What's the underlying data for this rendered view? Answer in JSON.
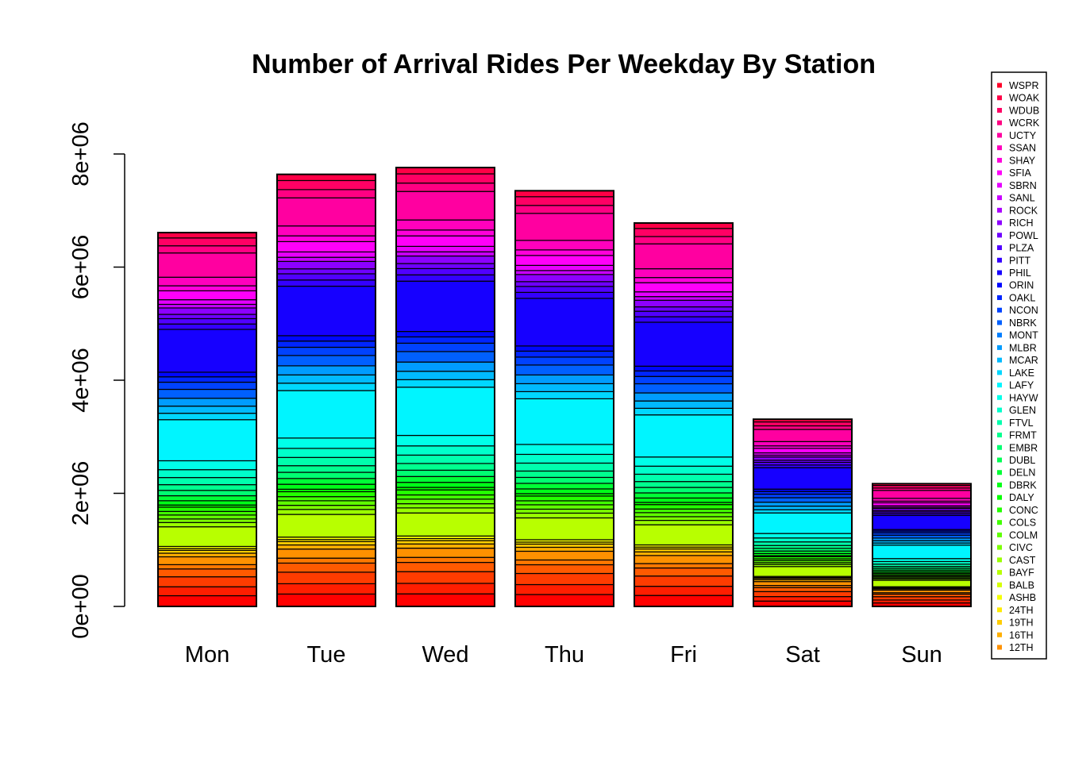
{
  "chart_data": {
    "type": "bar",
    "stacked": true,
    "title": "Number of Arrival Rides Per Weekday By Station",
    "xlabel": "",
    "ylabel": "",
    "ylim": [
      0,
      8000000
    ],
    "yticks": [
      {
        "value": 0,
        "label": "0e+00"
      },
      {
        "value": 2000000,
        "label": "2e+06"
      },
      {
        "value": 4000000,
        "label": "4e+06"
      },
      {
        "value": 6000000,
        "label": "6e+06"
      },
      {
        "value": 8000000,
        "label": "8e+06"
      }
    ],
    "categories": [
      "Mon",
      "Tue",
      "Wed",
      "Thu",
      "Fri",
      "Sat",
      "Sun"
    ],
    "totals": [
      6610000,
      7640000,
      7760000,
      7350000,
      6780000,
      3310000,
      2170000
    ],
    "station_shares": [
      0.03,
      0.025,
      0.028,
      0.022,
      0.012,
      0.022,
      0.01,
      0.008,
      0.005,
      0.006,
      0.055,
      0.012,
      0.01,
      0.011,
      0.01,
      0.012,
      0.006,
      0.012,
      0.014,
      0.015,
      0.016,
      0.02,
      0.022,
      0.025,
      0.115,
      0.018,
      0.02,
      0.022,
      0.025,
      0.02,
      0.015,
      0.013,
      0.12,
      0.015,
      0.015,
      0.012,
      0.018,
      0.01,
      0.013,
      0.025,
      0.014,
      0.024,
      0.068,
      0.02,
      0.022,
      0.015
    ],
    "legend_position": "right",
    "legend": [
      {
        "name": "WSPR",
        "color": "#ff0029"
      },
      {
        "name": "WOAK",
        "color": "#ff0046"
      },
      {
        "name": "WDUB",
        "color": "#ff0064"
      },
      {
        "name": "WCRK",
        "color": "#ff0082"
      },
      {
        "name": "UCTY",
        "color": "#ff00a0"
      },
      {
        "name": "SSAN",
        "color": "#ff00bd"
      },
      {
        "name": "SHAY",
        "color": "#ff00db"
      },
      {
        "name": "SFIA",
        "color": "#ff00f9"
      },
      {
        "name": "SBRN",
        "color": "#e600ff"
      },
      {
        "name": "SANL",
        "color": "#c900ff"
      },
      {
        "name": "ROCK",
        "color": "#ab00ff"
      },
      {
        "name": "RICH",
        "color": "#8d00ff"
      },
      {
        "name": "POWL",
        "color": "#6f00ff"
      },
      {
        "name": "PLZA",
        "color": "#5100ff"
      },
      {
        "name": "PITT",
        "color": "#3400ff"
      },
      {
        "name": "PHIL",
        "color": "#1600ff"
      },
      {
        "name": "ORIN",
        "color": "#0007ff"
      },
      {
        "name": "OAKL",
        "color": "#0025ff"
      },
      {
        "name": "NCON",
        "color": "#0042ff"
      },
      {
        "name": "NBRK",
        "color": "#0060ff"
      },
      {
        "name": "MONT",
        "color": "#007eff"
      },
      {
        "name": "MLBR",
        "color": "#009cff"
      },
      {
        "name": "MCAR",
        "color": "#00baff"
      },
      {
        "name": "LAKE",
        "color": "#00d7ff"
      },
      {
        "name": "LAFY",
        "color": "#00f5ff"
      },
      {
        "name": "HAYW",
        "color": "#00ffe9"
      },
      {
        "name": "GLEN",
        "color": "#00ffcb"
      },
      {
        "name": "FTVL",
        "color": "#00ffad"
      },
      {
        "name": "FRMT",
        "color": "#00ff8f"
      },
      {
        "name": "EMBR",
        "color": "#00ff72"
      },
      {
        "name": "DUBL",
        "color": "#00ff54"
      },
      {
        "name": "DELN",
        "color": "#00ff36"
      },
      {
        "name": "DBRK",
        "color": "#00ff18"
      },
      {
        "name": "DALY",
        "color": "#05ff00"
      },
      {
        "name": "CONC",
        "color": "#23ff00"
      },
      {
        "name": "COLS",
        "color": "#41ff00"
      },
      {
        "name": "COLM",
        "color": "#5fff00"
      },
      {
        "name": "CIVC",
        "color": "#7cff00"
      },
      {
        "name": "CAST",
        "color": "#9aff00"
      },
      {
        "name": "BAYF",
        "color": "#b8ff00"
      },
      {
        "name": "BALB",
        "color": "#d6ff00"
      },
      {
        "name": "ASHB",
        "color": "#f4ff00"
      },
      {
        "name": "24TH",
        "color": "#ffeb00"
      },
      {
        "name": "19TH",
        "color": "#ffcd00"
      },
      {
        "name": "16TH",
        "color": "#ffaf00"
      },
      {
        "name": "12TH",
        "color": "#ff9100"
      }
    ],
    "bar_color_order": [
      "#ff0000",
      "#ff1e00",
      "#ff3c00",
      "#ff5a00",
      "#ff7800",
      "#ff9100",
      "#ffaf00",
      "#ffcd00",
      "#ffeb00",
      "#f4ff00",
      "#d6ff00",
      "#b8ff00",
      "#9aff00",
      "#7cff00",
      "#5fff00",
      "#41ff00",
      "#23ff00",
      "#05ff00",
      "#00ff18",
      "#00ff36",
      "#00ff54",
      "#00ff72",
      "#00ff8f",
      "#00ffad",
      "#00ffcb",
      "#00ffe9",
      "#00f5ff",
      "#00d7ff",
      "#00baff",
      "#009cff",
      "#007eff",
      "#0060ff",
      "#0042ff",
      "#0025ff",
      "#0007ff",
      "#1600ff",
      "#3400ff",
      "#5100ff",
      "#6f00ff",
      "#8d00ff",
      "#ab00ff",
      "#c900ff",
      "#e600ff",
      "#ff00f9",
      "#ff00db",
      "#ff00bd",
      "#ff00a0",
      "#ff0082",
      "#ff0064",
      "#ff0046",
      "#ff0029"
    ]
  }
}
